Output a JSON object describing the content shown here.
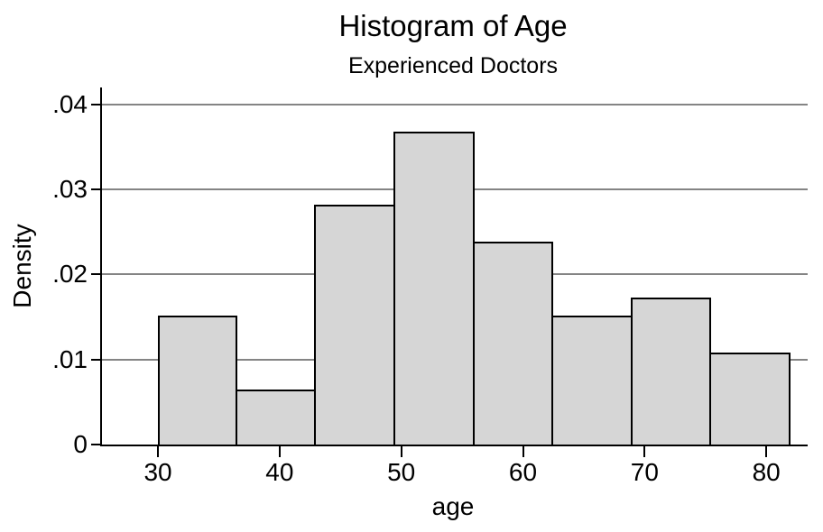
{
  "chart_data": {
    "type": "bar",
    "variant": "histogram",
    "title": "Histogram of Age",
    "subtitle": "Experienced Doctors",
    "xlabel": "age",
    "ylabel": "Density",
    "bins": [
      {
        "start": 30.0,
        "end": 36.5,
        "density": 0.01517
      },
      {
        "start": 36.5,
        "end": 43.0,
        "density": 0.00651
      },
      {
        "start": 43.0,
        "end": 49.5,
        "density": 0.02817
      },
      {
        "start": 49.5,
        "end": 56.0,
        "density": 0.03683
      },
      {
        "start": 56.0,
        "end": 62.5,
        "density": 0.02383
      },
      {
        "start": 62.5,
        "end": 69.0,
        "density": 0.01517
      },
      {
        "start": 69.0,
        "end": 75.5,
        "density": 0.01733
      },
      {
        "start": 75.5,
        "end": 82.0,
        "density": 0.01084
      }
    ],
    "bin_width": 6.5,
    "x_ticks": [
      {
        "value": 30,
        "label": "30"
      },
      {
        "value": 40,
        "label": "40"
      },
      {
        "value": 50,
        "label": "50"
      },
      {
        "value": 60,
        "label": "60"
      },
      {
        "value": 70,
        "label": "70"
      },
      {
        "value": 80,
        "label": "80"
      }
    ],
    "y_ticks": [
      {
        "value": 0,
        "label": "0"
      },
      {
        "value": 0.01,
        "label": ".01"
      },
      {
        "value": 0.02,
        "label": ".02"
      },
      {
        "value": 0.03,
        "label": ".03"
      },
      {
        "value": 0.04,
        "label": ".04"
      }
    ],
    "xlim": [
      25.4,
      83.4
    ],
    "ylim": [
      0,
      0.042
    ],
    "grid": "horizontal-only",
    "legend": "none",
    "colors": {
      "background": "#ffffff",
      "bar_fill": "#d6d6d6",
      "bar_border": "#000000",
      "gridline": "#848484",
      "axis": "#000000",
      "text": "#000000"
    }
  }
}
